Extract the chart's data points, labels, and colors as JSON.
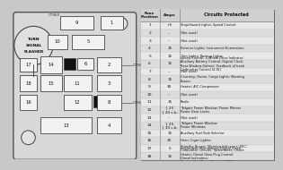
{
  "bg_color": "#c8c8c8",
  "fuse_box_bg": "#d4d4d4",
  "fuse_color": "#f2f2f2",
  "fuse_border": "#444444",
  "filled_color": "#111111",
  "flasher_label": [
    "TURN",
    "SIGNAL",
    "FLASHER"
  ],
  "ct_labels": [
    "CT960",
    "CT961",
    "CT962"
  ],
  "fuse_rows": [
    [
      "1",
      "+5",
      "Stop/Hazard Lights; Speed Control"
    ],
    [
      "2",
      "--",
      "(Not used)"
    ],
    [
      "3",
      "--",
      "(Not used)"
    ],
    [
      "4",
      "15",
      "Exterior Lights; Instrument Illumination"
    ],
    [
      "5",
      "15",
      "Turn Lights; Backup Lights"
    ],
    [
      "6",
      "15",
      "Speed Control; 4-Wheel Drive Indicator;\nAuxiliary Battery Control; Digital Clock;\nRear Window Defrost; Feedback of bank\nCarburetor Control (4.9L)"
    ],
    [
      "7",
      "--",
      "(Not used)"
    ],
    [
      "8",
      "15",
      "Courtesy, Dome, Cargo Lights; Warning\nBuzzer"
    ],
    [
      "9",
      "30",
      "Heater; A/C Compressor"
    ],
    [
      "10",
      "--",
      "(Not used)"
    ],
    [
      "11",
      "15",
      "Radio"
    ],
    [
      "12",
      "{ 25\n{ 30 c.b.",
      "Tailgate Power Window; Power Mirrors\nPower Door Locks"
    ],
    [
      "13",
      "--",
      "(Not used)"
    ],
    [
      "14",
      "{ 25\n{ 30 c.b.",
      "Tailgate Power Window\nPower Windows"
    ],
    [
      "15",
      "15",
      "Auxiliary Fuel Tank Selector"
    ],
    [
      "16",
      "20",
      "Horn; Cigar Lighter"
    ],
    [
      "17",
      "5",
      "Instrument Illumination; Digital Clock"
    ],
    [
      "18",
      "15",
      "Standby Buzzer; Warning Indicators; EEC;\nCarburetor Circuits; Tachometer; Choke\nHeater; Diesel Glow Plug Control;\nDiesel Indicators;\nElectric Fuel Pump Control (7.5L);\nUpshift Indicator (4.9L)"
    ]
  ],
  "table_header_bg": "#d8d8d8",
  "table_row_bg1": "#e8e8e8",
  "table_row_bg2": "#dcdcdc",
  "table_border": "#666666"
}
